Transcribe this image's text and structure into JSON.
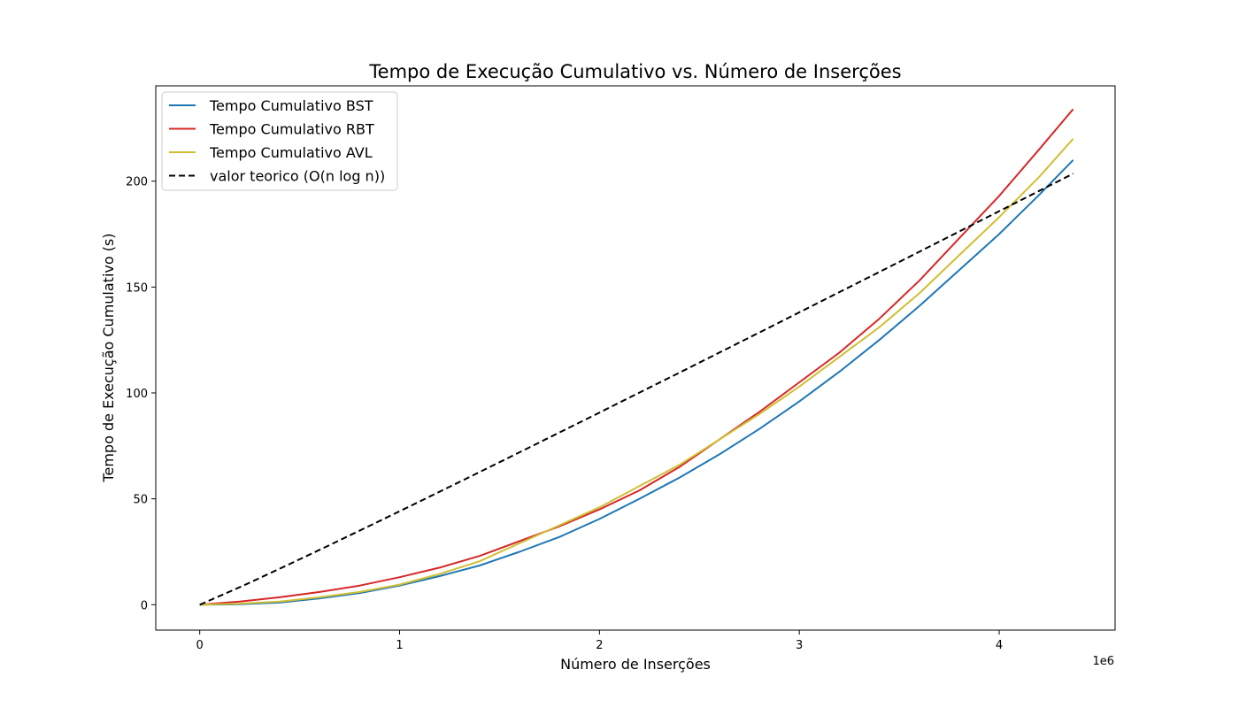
{
  "chart_data": {
    "type": "line",
    "title": "Tempo de Execução Cumulativo vs. Número de Inserções",
    "xlabel": "Número de Inserções",
    "ylabel": "Tempo de Execução Cumulativo (s)",
    "x_offset_label": "1e6",
    "xlim": [
      -220000,
      4580000
    ],
    "ylim": [
      -12,
      245
    ],
    "xticks": [
      0,
      1,
      2,
      3,
      4
    ],
    "xtick_labels": [
      "0",
      "1",
      "2",
      "3",
      "4"
    ],
    "yticks": [
      0,
      50,
      100,
      150,
      200
    ],
    "ytick_labels": [
      "0",
      "50",
      "100",
      "150",
      "200"
    ],
    "grid": false,
    "legend_position": "top-left",
    "series": [
      {
        "name": "Tempo Cumulativo BST",
        "color": "#1f77b4",
        "style": "solid",
        "x": [
          0,
          200000,
          400000,
          600000,
          800000,
          1000000,
          1200000,
          1400000,
          1600000,
          1800000,
          2000000,
          2200000,
          2400000,
          2600000,
          2800000,
          3000000,
          3200000,
          3400000,
          3600000,
          3800000,
          4000000,
          4200000,
          4370000
        ],
        "y": [
          0,
          0.2,
          1.0,
          3.0,
          5.5,
          9.0,
          13.5,
          18.5,
          25.0,
          32.0,
          40.5,
          50.0,
          60.0,
          71.0,
          83.0,
          96.0,
          110.0,
          125.0,
          141.0,
          158.0,
          175.0,
          193.5,
          210.0
        ]
      },
      {
        "name": "Tempo Cumulativo RBT",
        "color": "#d62728",
        "style": "solid",
        "x": [
          0,
          200000,
          400000,
          600000,
          800000,
          1000000,
          1200000,
          1400000,
          1600000,
          1800000,
          2000000,
          2200000,
          2400000,
          2600000,
          2800000,
          3000000,
          3200000,
          3400000,
          3600000,
          3800000,
          4000000,
          4200000,
          4370000
        ],
        "y": [
          0,
          1.5,
          3.5,
          6.0,
          9.0,
          13.0,
          17.5,
          23.0,
          30.0,
          37.0,
          45.0,
          54.0,
          65.0,
          78.0,
          91.0,
          105.0,
          119.0,
          135.0,
          153.0,
          173.0,
          193.0,
          215.0,
          234.0
        ]
      },
      {
        "name": "Tempo Cumulativo AVL",
        "color": "#cfbf34",
        "style": "solid",
        "x": [
          0,
          200000,
          400000,
          600000,
          800000,
          1000000,
          1200000,
          1400000,
          1600000,
          1800000,
          2000000,
          2200000,
          2400000,
          2600000,
          2800000,
          3000000,
          3200000,
          3400000,
          3600000,
          3800000,
          4000000,
          4200000,
          4370000
        ],
        "y": [
          0,
          0.5,
          1.5,
          3.5,
          6.0,
          9.5,
          14.5,
          20.5,
          29.0,
          37.5,
          46.0,
          56.0,
          66.0,
          78.0,
          90.0,
          103.0,
          117.0,
          131.0,
          147.0,
          165.0,
          183.0,
          202.0,
          220.0
        ]
      },
      {
        "name": "valor teorico (O(n log n))",
        "color": "#000000",
        "style": "dashed",
        "x": [
          0,
          218500,
          437000,
          655500,
          874000,
          1092500,
          1311000,
          1529500,
          1748000,
          1966500,
          2185000,
          2403500,
          2622000,
          2840500,
          3059000,
          3277500,
          3496000,
          3714500,
          3933000,
          4151500,
          4370000
        ],
        "y": [
          0,
          9.04,
          18.62,
          28.41,
          38.35,
          48.38,
          58.49,
          68.66,
          78.88,
          89.13,
          99.43,
          109.75,
          120.09,
          130.46,
          140.85,
          151.26,
          161.69,
          172.13,
          182.59,
          193.06,
          203.55
        ]
      }
    ]
  }
}
